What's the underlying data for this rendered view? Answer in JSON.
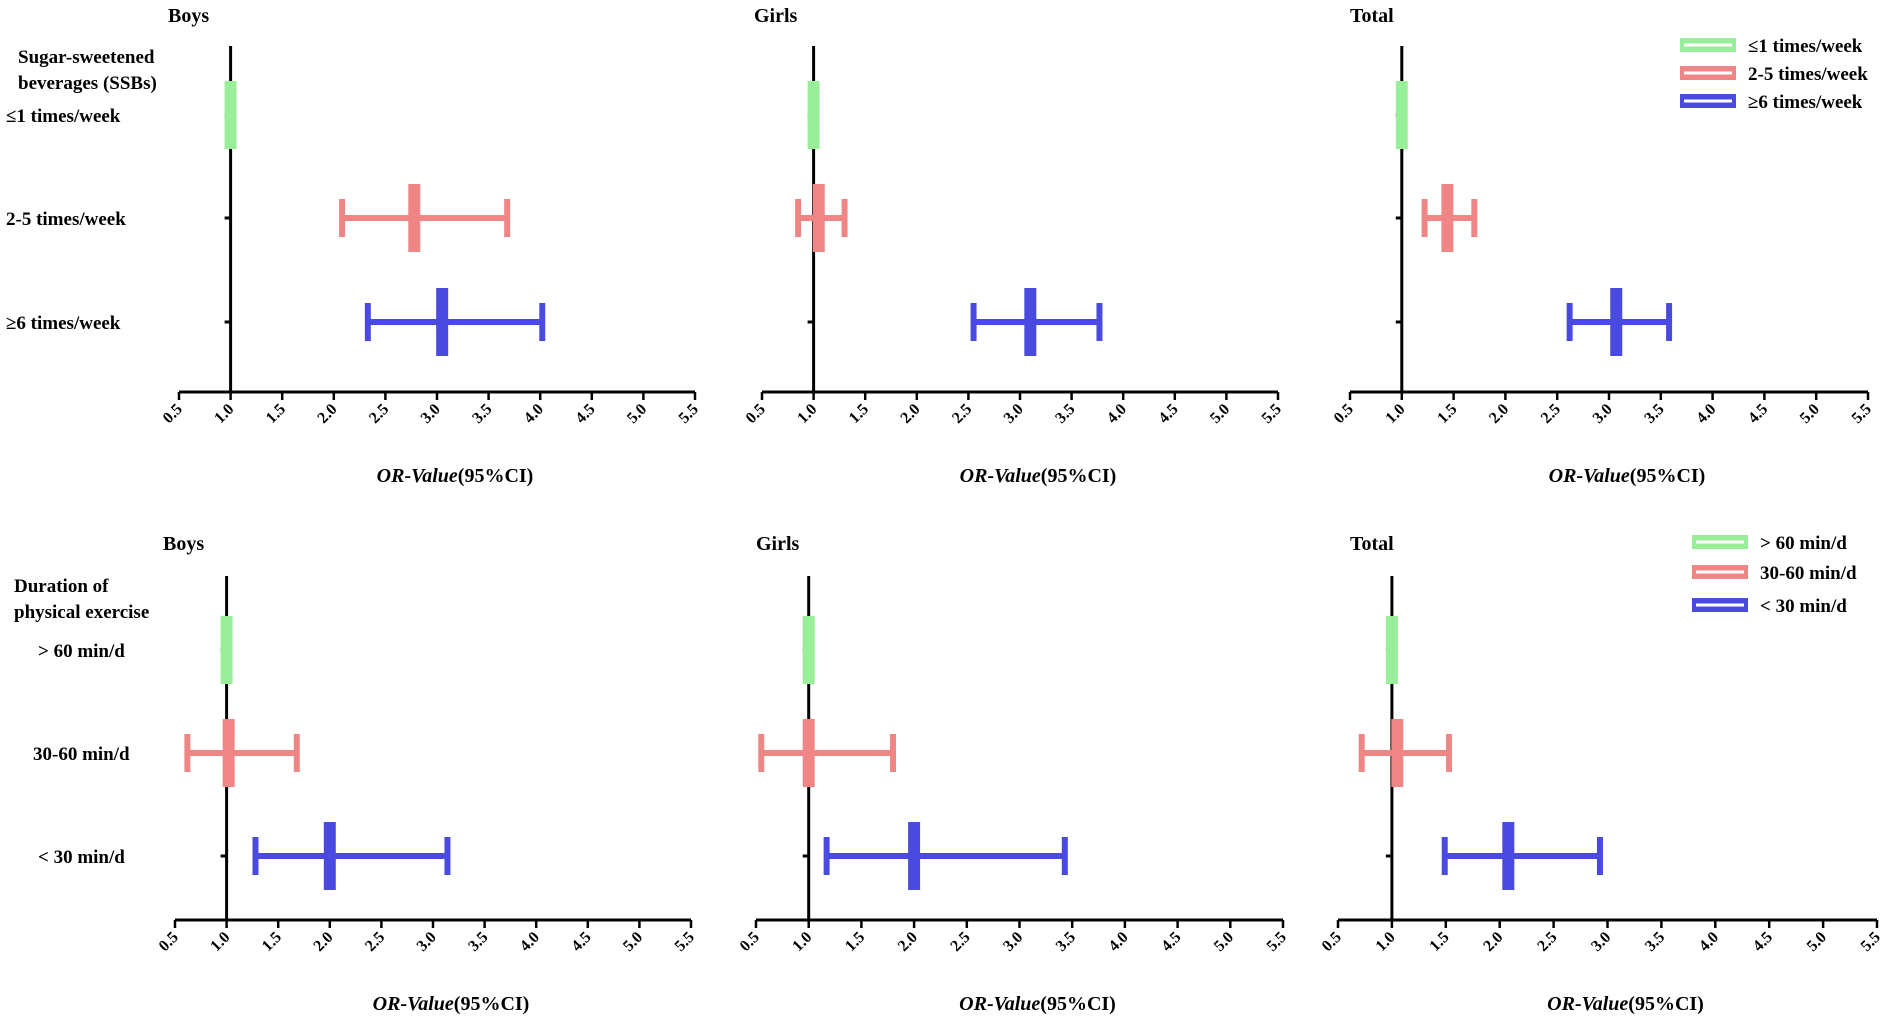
{
  "colors": {
    "green": "#99ee99",
    "red": "#f08585",
    "blue": "#4a4ae0",
    "axis": "#000000"
  },
  "chart_data": [
    {
      "type": "forest",
      "group": "SSBs",
      "group_label_lines": [
        "Sugar-sweetened",
        "beverages (SSBs)"
      ],
      "categories": [
        "≤1 times/week",
        "2-5 times/week",
        "≥6 times/week"
      ],
      "legend": [
        "≤1 times/week",
        "2-5 times/week",
        "≥6 times/week"
      ],
      "xlabel_italic": "OR-Value",
      "xlabel_rest": "(95%CI)",
      "xlim": [
        0.5,
        5.5
      ],
      "xticks": [
        "0.5",
        "1.0",
        "1.5",
        "2.0",
        "2.5",
        "3.0",
        "3.5",
        "4.0",
        "4.5",
        "5.0",
        "5.5"
      ],
      "reference": 1.0,
      "panels": [
        {
          "title": "Boys",
          "series": [
            {
              "or": 1.0,
              "lo": 1.0,
              "hi": 1.0
            },
            {
              "or": 2.78,
              "lo": 2.08,
              "hi": 3.68
            },
            {
              "or": 3.05,
              "lo": 2.33,
              "hi": 4.02
            }
          ]
        },
        {
          "title": "Girls",
          "series": [
            {
              "or": 1.0,
              "lo": 1.0,
              "hi": 1.0
            },
            {
              "or": 1.05,
              "lo": 0.85,
              "hi": 1.3
            },
            {
              "or": 3.1,
              "lo": 2.55,
              "hi": 3.77
            }
          ]
        },
        {
          "title": "Total",
          "series": [
            {
              "or": 1.0,
              "lo": 1.0,
              "hi": 1.0
            },
            {
              "or": 1.44,
              "lo": 1.22,
              "hi": 1.7
            },
            {
              "or": 3.07,
              "lo": 2.62,
              "hi": 3.58
            }
          ]
        }
      ]
    },
    {
      "type": "forest",
      "group": "Physical exercise",
      "group_label_lines": [
        "Duration of",
        "physical exercise"
      ],
      "categories": [
        "> 60 min/d",
        "30-60 min/d",
        "< 30 min/d"
      ],
      "legend": [
        "> 60 min/d",
        "30-60 min/d",
        "< 30 min/d"
      ],
      "xlabel_italic": "OR-Value",
      "xlabel_rest": "(95%CI)",
      "xlim": [
        0.5,
        5.5
      ],
      "xticks": [
        "0.5",
        "1.0",
        "1.5",
        "2.0",
        "2.5",
        "3.0",
        "3.5",
        "4.0",
        "4.5",
        "5.0",
        "5.5"
      ],
      "reference": 1.0,
      "panels": [
        {
          "title": "Boys",
          "series": [
            {
              "or": 1.0,
              "lo": 1.0,
              "hi": 1.0
            },
            {
              "or": 1.02,
              "lo": 0.62,
              "hi": 1.68
            },
            {
              "or": 2.0,
              "lo": 1.28,
              "hi": 3.14
            }
          ]
        },
        {
          "title": "Girls",
          "series": [
            {
              "or": 1.0,
              "lo": 1.0,
              "hi": 1.0
            },
            {
              "or": 1.0,
              "lo": 0.55,
              "hi": 1.8
            },
            {
              "or": 2.0,
              "lo": 1.17,
              "hi": 3.43
            }
          ]
        },
        {
          "title": "Total",
          "series": [
            {
              "or": 1.0,
              "lo": 1.0,
              "hi": 1.0
            },
            {
              "or": 1.05,
              "lo": 0.72,
              "hi": 1.53
            },
            {
              "or": 2.08,
              "lo": 1.49,
              "hi": 2.93
            }
          ]
        }
      ]
    }
  ]
}
